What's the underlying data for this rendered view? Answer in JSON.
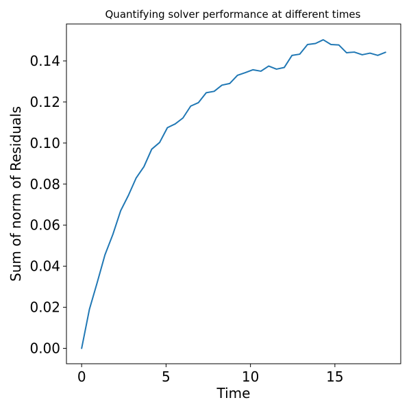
{
  "chart_data": {
    "type": "line",
    "title": "Quantifying solver performance at different times",
    "xlabel": "Time",
    "ylabel": "Sum of norm of Residuals",
    "xlim": [
      -0.9,
      18.9
    ],
    "ylim": [
      -0.0075,
      0.158
    ],
    "xticks": [
      0,
      5,
      10,
      15
    ],
    "xtick_labels": [
      "0",
      "5",
      "10",
      "15"
    ],
    "yticks": [
      0.0,
      0.02,
      0.04,
      0.06,
      0.08,
      0.1,
      0.12,
      0.14
    ],
    "ytick_labels": [
      "0.00",
      "0.02",
      "0.04",
      "0.06",
      "0.08",
      "0.10",
      "0.12",
      "0.14"
    ],
    "grid": false,
    "legend": "none",
    "series": [
      {
        "color": "#1f77b4",
        "x": [
          0,
          0.46,
          0.92,
          1.38,
          1.85,
          2.31,
          2.77,
          3.23,
          3.69,
          4.15,
          4.62,
          5.08,
          5.54,
          6.0,
          6.46,
          6.92,
          7.38,
          7.85,
          8.31,
          8.77,
          9.23,
          9.69,
          10.15,
          10.62,
          11.08,
          11.54,
          12.0,
          12.46,
          12.92,
          13.38,
          13.85,
          14.31,
          14.77,
          15.23,
          15.69,
          16.15,
          16.62,
          17.08,
          17.54,
          18.0
        ],
        "y": [
          0.0,
          0.019,
          0.032,
          0.0455,
          0.0555,
          0.067,
          0.0745,
          0.083,
          0.0885,
          0.097,
          0.1003,
          0.1075,
          0.1093,
          0.1122,
          0.118,
          0.1197,
          0.1245,
          0.1252,
          0.1282,
          0.129,
          0.133,
          0.1343,
          0.1357,
          0.135,
          0.1375,
          0.136,
          0.1368,
          0.1427,
          0.1433,
          0.148,
          0.1485,
          0.1503,
          0.148,
          0.1478,
          0.144,
          0.1443,
          0.143,
          0.1438,
          0.1427,
          0.1442
        ]
      }
    ]
  }
}
